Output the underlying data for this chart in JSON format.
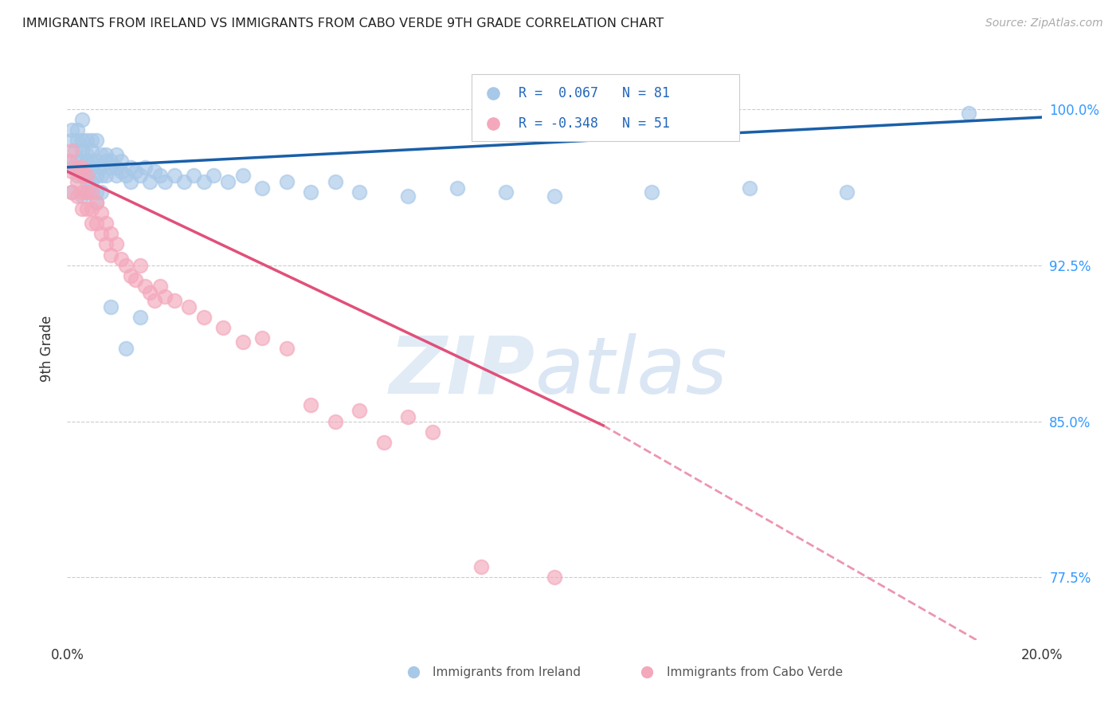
{
  "title": "IMMIGRANTS FROM IRELAND VS IMMIGRANTS FROM CABO VERDE 9TH GRADE CORRELATION CHART",
  "source": "Source: ZipAtlas.com",
  "ylabel": "9th Grade",
  "ylabel_right_labels": [
    "77.5%",
    "85.0%",
    "92.5%",
    "100.0%"
  ],
  "ylabel_right_values": [
    0.775,
    0.85,
    0.925,
    1.0
  ],
  "xlim": [
    0.0,
    0.2
  ],
  "ylim": [
    0.745,
    1.025
  ],
  "legend_r_ireland": "0.067",
  "legend_n_ireland": "81",
  "legend_r_caboverde": "-0.348",
  "legend_n_caboverde": "51",
  "ireland_color": "#a8c8e8",
  "caboverde_color": "#f4a8bc",
  "ireland_line_color": "#1a5fa8",
  "caboverde_line_color": "#e0507a",
  "background_color": "#ffffff",
  "ireland_x": [
    0.0005,
    0.001,
    0.001,
    0.001,
    0.001,
    0.0015,
    0.002,
    0.002,
    0.002,
    0.002,
    0.0025,
    0.003,
    0.003,
    0.003,
    0.003,
    0.003,
    0.0035,
    0.004,
    0.004,
    0.004,
    0.004,
    0.004,
    0.004,
    0.005,
    0.005,
    0.005,
    0.005,
    0.005,
    0.006,
    0.006,
    0.006,
    0.006,
    0.007,
    0.007,
    0.007,
    0.007,
    0.008,
    0.008,
    0.008,
    0.009,
    0.009,
    0.01,
    0.01,
    0.01,
    0.011,
    0.011,
    0.012,
    0.013,
    0.013,
    0.014,
    0.015,
    0.016,
    0.017,
    0.018,
    0.019,
    0.02,
    0.022,
    0.024,
    0.026,
    0.028,
    0.03,
    0.033,
    0.036,
    0.04,
    0.045,
    0.05,
    0.055,
    0.06,
    0.07,
    0.08,
    0.09,
    0.1,
    0.12,
    0.14,
    0.16,
    0.185,
    0.003,
    0.006,
    0.009,
    0.012,
    0.015
  ],
  "ireland_y": [
    0.975,
    0.985,
    0.972,
    0.99,
    0.96,
    0.98,
    0.985,
    0.975,
    0.968,
    0.99,
    0.972,
    0.98,
    0.972,
    0.995,
    0.985,
    0.975,
    0.968,
    0.978,
    0.985,
    0.972,
    0.965,
    0.975,
    0.96,
    0.98,
    0.972,
    0.985,
    0.975,
    0.965,
    0.975,
    0.968,
    0.985,
    0.96,
    0.978,
    0.972,
    0.968,
    0.96,
    0.975,
    0.968,
    0.978,
    0.972,
    0.975,
    0.978,
    0.972,
    0.968,
    0.975,
    0.97,
    0.968,
    0.972,
    0.965,
    0.97,
    0.968,
    0.972,
    0.965,
    0.97,
    0.968,
    0.965,
    0.968,
    0.965,
    0.968,
    0.965,
    0.968,
    0.965,
    0.968,
    0.962,
    0.965,
    0.96,
    0.965,
    0.96,
    0.958,
    0.962,
    0.96,
    0.958,
    0.96,
    0.962,
    0.96,
    0.998,
    0.958,
    0.955,
    0.905,
    0.885,
    0.9
  ],
  "caboverde_x": [
    0.0005,
    0.001,
    0.001,
    0.001,
    0.002,
    0.002,
    0.002,
    0.003,
    0.003,
    0.003,
    0.003,
    0.004,
    0.004,
    0.004,
    0.005,
    0.005,
    0.005,
    0.006,
    0.006,
    0.007,
    0.007,
    0.008,
    0.008,
    0.009,
    0.009,
    0.01,
    0.011,
    0.012,
    0.013,
    0.014,
    0.015,
    0.016,
    0.017,
    0.018,
    0.019,
    0.02,
    0.022,
    0.025,
    0.028,
    0.032,
    0.036,
    0.04,
    0.045,
    0.05,
    0.055,
    0.06,
    0.065,
    0.07,
    0.075,
    0.085,
    0.1
  ],
  "caboverde_y": [
    0.975,
    0.97,
    0.96,
    0.98,
    0.972,
    0.965,
    0.958,
    0.968,
    0.96,
    0.952,
    0.972,
    0.96,
    0.968,
    0.952,
    0.96,
    0.952,
    0.945,
    0.955,
    0.945,
    0.95,
    0.94,
    0.945,
    0.935,
    0.94,
    0.93,
    0.935,
    0.928,
    0.925,
    0.92,
    0.918,
    0.925,
    0.915,
    0.912,
    0.908,
    0.915,
    0.91,
    0.908,
    0.905,
    0.9,
    0.895,
    0.888,
    0.89,
    0.885,
    0.858,
    0.85,
    0.855,
    0.84,
    0.852,
    0.845,
    0.78,
    0.775
  ]
}
